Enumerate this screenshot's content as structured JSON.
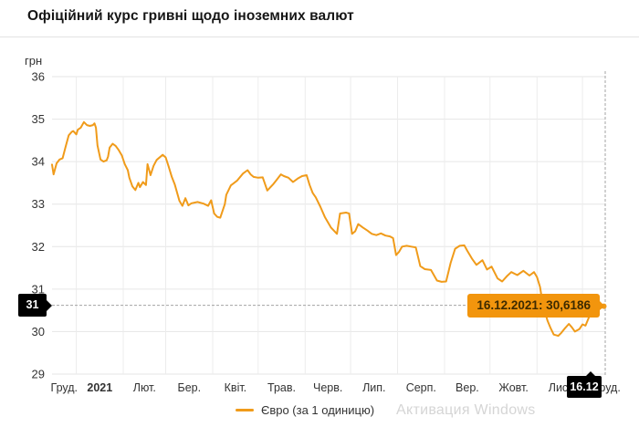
{
  "header": {
    "title": "Офіційний курс гривні щодо іноземних валют"
  },
  "chart": {
    "tooltip": {
      "text": "16.12.2021: 30,6186"
    },
    "crosshair": {
      "y_label": "31",
      "x_label": "16.12"
    },
    "watermark": "Активация Windows"
  },
  "colors": {
    "line": "#f09b1a",
    "tooltip_bg": "#f2950d",
    "tooltip_text": "#3e2b00",
    "crosshair_badge_bg": "#000000",
    "grid": "#e6e6e6",
    "crosshair_dash": "#a3a3a3"
  },
  "chart_data": {
    "type": "line",
    "title": "Офіційний курс гривні щодо іноземних валют",
    "xlabel": "",
    "ylabel": "грн",
    "ylim": [
      29,
      36
    ],
    "y_ticks": [
      36,
      35,
      34,
      33,
      32,
      31,
      30,
      29
    ],
    "x_range": [
      "2020-12-16",
      "2021-12-16"
    ],
    "x_tick_labels": [
      "Груд.",
      "2021",
      "Лют.",
      "Бер.",
      "Квіт.",
      "Трав.",
      "Черв.",
      "Лип.",
      "Серп.",
      "Вер.",
      "Жовт.",
      "Лис.",
      "Груд."
    ],
    "grid": true,
    "legend_position": "bottom-center",
    "selected_point": {
      "date": "2021-12-16",
      "value": 30.6186,
      "label": "16.12.2021: 30,6186",
      "rounded_axis_label": "31",
      "axis_date_label": "16.12"
    },
    "series": [
      {
        "name": "Євро (за 1 одиницю)",
        "color": "#f09b1a",
        "points": [
          [
            "2020-12-16",
            33.93
          ],
          [
            "2020-12-17",
            33.7
          ],
          [
            "2020-12-19",
            33.96
          ],
          [
            "2020-12-21",
            34.05
          ],
          [
            "2020-12-23",
            34.08
          ],
          [
            "2020-12-25",
            34.35
          ],
          [
            "2020-12-27",
            34.62
          ],
          [
            "2020-12-29",
            34.7
          ],
          [
            "2020-12-30",
            34.72
          ],
          [
            "2021-01-01",
            34.64
          ],
          [
            "2021-01-02",
            34.75
          ],
          [
            "2021-01-04",
            34.8
          ],
          [
            "2021-01-06",
            34.93
          ],
          [
            "2021-01-08",
            34.86
          ],
          [
            "2021-01-10",
            34.84
          ],
          [
            "2021-01-12",
            34.86
          ],
          [
            "2021-01-13",
            34.9
          ],
          [
            "2021-01-14",
            34.8
          ],
          [
            "2021-01-15",
            34.38
          ],
          [
            "2021-01-17",
            34.05
          ],
          [
            "2021-01-19",
            34.0
          ],
          [
            "2021-01-21",
            34.03
          ],
          [
            "2021-01-22",
            34.12
          ],
          [
            "2021-01-23",
            34.33
          ],
          [
            "2021-01-25",
            34.42
          ],
          [
            "2021-01-27",
            34.37
          ],
          [
            "2021-01-29",
            34.27
          ],
          [
            "2021-01-31",
            34.15
          ],
          [
            "2021-02-02",
            33.94
          ],
          [
            "2021-02-04",
            33.8
          ],
          [
            "2021-02-05",
            33.62
          ],
          [
            "2021-02-07",
            33.42
          ],
          [
            "2021-02-09",
            33.33
          ],
          [
            "2021-02-11",
            33.5
          ],
          [
            "2021-02-12",
            33.4
          ],
          [
            "2021-02-14",
            33.52
          ],
          [
            "2021-02-16",
            33.45
          ],
          [
            "2021-02-17",
            33.94
          ],
          [
            "2021-02-19",
            33.68
          ],
          [
            "2021-02-21",
            33.9
          ],
          [
            "2021-02-23",
            34.04
          ],
          [
            "2021-02-27",
            34.16
          ],
          [
            "2021-03-01",
            34.1
          ],
          [
            "2021-03-03",
            33.88
          ],
          [
            "2021-03-05",
            33.64
          ],
          [
            "2021-03-07",
            33.46
          ],
          [
            "2021-03-10",
            33.08
          ],
          [
            "2021-03-12",
            32.96
          ],
          [
            "2021-03-14",
            33.14
          ],
          [
            "2021-03-16",
            32.97
          ],
          [
            "2021-03-18",
            33.02
          ],
          [
            "2021-03-22",
            33.05
          ],
          [
            "2021-03-26",
            33.01
          ],
          [
            "2021-03-29",
            32.96
          ],
          [
            "2021-03-31",
            33.09
          ],
          [
            "2021-04-02",
            32.78
          ],
          [
            "2021-04-04",
            32.7
          ],
          [
            "2021-04-06",
            32.68
          ],
          [
            "2021-04-09",
            33.0
          ],
          [
            "2021-04-10",
            33.22
          ],
          [
            "2021-04-13",
            33.44
          ],
          [
            "2021-04-17",
            33.55
          ],
          [
            "2021-04-21",
            33.72
          ],
          [
            "2021-04-24",
            33.8
          ],
          [
            "2021-04-26",
            33.7
          ],
          [
            "2021-04-28",
            33.64
          ],
          [
            "2021-05-01",
            33.62
          ],
          [
            "2021-05-04",
            33.63
          ],
          [
            "2021-05-07",
            33.32
          ],
          [
            "2021-05-11",
            33.47
          ],
          [
            "2021-05-13",
            33.56
          ],
          [
            "2021-05-16",
            33.7
          ],
          [
            "2021-05-18",
            33.66
          ],
          [
            "2021-05-21",
            33.62
          ],
          [
            "2021-05-24",
            33.52
          ],
          [
            "2021-05-27",
            33.6
          ],
          [
            "2021-05-30",
            33.66
          ],
          [
            "2021-06-02",
            33.68
          ],
          [
            "2021-06-04",
            33.45
          ],
          [
            "2021-06-06",
            33.26
          ],
          [
            "2021-06-08",
            33.16
          ],
          [
            "2021-06-11",
            32.94
          ],
          [
            "2021-06-14",
            32.7
          ],
          [
            "2021-06-18",
            32.45
          ],
          [
            "2021-06-22",
            32.3
          ],
          [
            "2021-06-24",
            32.78
          ],
          [
            "2021-06-28",
            32.8
          ],
          [
            "2021-06-30",
            32.78
          ],
          [
            "2021-07-02",
            32.3
          ],
          [
            "2021-07-04",
            32.36
          ],
          [
            "2021-07-06",
            32.53
          ],
          [
            "2021-07-09",
            32.45
          ],
          [
            "2021-07-12",
            32.38
          ],
          [
            "2021-07-15",
            32.3
          ],
          [
            "2021-07-18",
            32.27
          ],
          [
            "2021-07-21",
            32.31
          ],
          [
            "2021-07-24",
            32.26
          ],
          [
            "2021-07-27",
            32.24
          ],
          [
            "2021-07-29",
            32.2
          ],
          [
            "2021-07-31",
            31.8
          ],
          [
            "2021-08-02",
            31.88
          ],
          [
            "2021-08-04",
            32.0
          ],
          [
            "2021-08-07",
            32.02
          ],
          [
            "2021-08-10",
            32.0
          ],
          [
            "2021-08-13",
            31.98
          ],
          [
            "2021-08-16",
            31.54
          ],
          [
            "2021-08-19",
            31.47
          ],
          [
            "2021-08-23",
            31.45
          ],
          [
            "2021-08-27",
            31.2
          ],
          [
            "2021-08-30",
            31.17
          ],
          [
            "2021-09-02",
            31.18
          ],
          [
            "2021-09-05",
            31.62
          ],
          [
            "2021-09-08",
            31.95
          ],
          [
            "2021-09-11",
            32.02
          ],
          [
            "2021-09-14",
            32.03
          ],
          [
            "2021-09-16",
            31.9
          ],
          [
            "2021-09-19",
            31.72
          ],
          [
            "2021-09-22",
            31.57
          ],
          [
            "2021-09-26",
            31.68
          ],
          [
            "2021-09-29",
            31.46
          ],
          [
            "2021-10-02",
            31.53
          ],
          [
            "2021-10-06",
            31.25
          ],
          [
            "2021-10-09",
            31.18
          ],
          [
            "2021-10-12",
            31.3
          ],
          [
            "2021-10-15",
            31.4
          ],
          [
            "2021-10-19",
            31.33
          ],
          [
            "2021-10-23",
            31.43
          ],
          [
            "2021-10-27",
            31.32
          ],
          [
            "2021-10-30",
            31.4
          ],
          [
            "2021-11-01",
            31.28
          ],
          [
            "2021-11-03",
            31.05
          ],
          [
            "2021-11-05",
            30.6
          ],
          [
            "2021-11-08",
            30.25
          ],
          [
            "2021-11-10",
            30.08
          ],
          [
            "2021-11-12",
            29.93
          ],
          [
            "2021-11-15",
            29.9
          ],
          [
            "2021-11-17",
            29.97
          ],
          [
            "2021-11-19",
            30.06
          ],
          [
            "2021-11-22",
            30.18
          ],
          [
            "2021-11-24",
            30.1
          ],
          [
            "2021-11-26",
            30.0
          ],
          [
            "2021-11-29",
            30.06
          ],
          [
            "2021-12-01",
            30.17
          ],
          [
            "2021-12-03",
            30.14
          ],
          [
            "2021-12-06",
            30.4
          ],
          [
            "2021-12-08",
            30.53
          ],
          [
            "2021-12-10",
            30.48
          ],
          [
            "2021-12-13",
            30.55
          ],
          [
            "2021-12-16",
            30.6186
          ]
        ]
      }
    ]
  }
}
